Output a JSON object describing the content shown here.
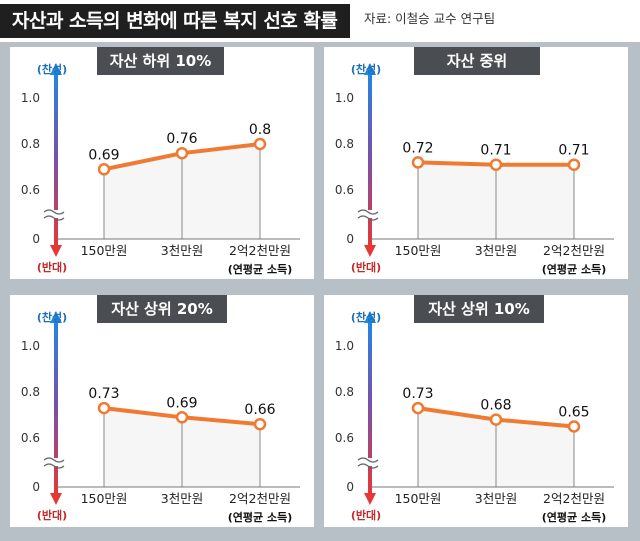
{
  "header": {
    "title": "자산과 소득의 변화에 따른 복지 선호 확률",
    "source": "자료: 이철승 교수 연구팀"
  },
  "axis": {
    "top_label": "(찬성)",
    "bottom_label": "(반대)",
    "unit_note": "(연평균 소득)",
    "ticks": [
      "0",
      "0.6",
      "0.8",
      "1.0"
    ]
  },
  "colors": {
    "line": "#f07a31",
    "top_arrow": "#1e88e5",
    "bottom_arrow": "#e53935"
  },
  "chart_data": [
    {
      "type": "line",
      "title": "자산 하위 10%",
      "categories": [
        "150만원",
        "3천만원",
        "2억2천만원"
      ],
      "values": [
        0.69,
        0.76,
        0.8
      ],
      "value_labels": [
        "0.69",
        "0.76",
        "0.8"
      ],
      "y_tick_labels": [
        "0",
        "0.6",
        "0.8",
        "1.0"
      ],
      "axis_break": "between 0 and 0.6"
    },
    {
      "type": "line",
      "title": "자산 중위",
      "categories": [
        "150만원",
        "3천만원",
        "2억2천만원"
      ],
      "values": [
        0.72,
        0.71,
        0.71
      ],
      "value_labels": [
        "0.72",
        "0.71",
        "0.71"
      ],
      "y_tick_labels": [
        "0",
        "0.6",
        "0.8",
        "1.0"
      ],
      "axis_break": "between 0 and 0.6"
    },
    {
      "type": "line",
      "title": "자산 상위 20%",
      "categories": [
        "150만원",
        "3천만원",
        "2억2천만원"
      ],
      "values": [
        0.73,
        0.69,
        0.66
      ],
      "value_labels": [
        "0.73",
        "0.69",
        "0.66"
      ],
      "y_tick_labels": [
        "0",
        "0.6",
        "0.8",
        "1.0"
      ],
      "axis_break": "between 0 and 0.6"
    },
    {
      "type": "line",
      "title": "자산 상위 10%",
      "categories": [
        "150만원",
        "3천만원",
        "2억2천만원"
      ],
      "values": [
        0.73,
        0.68,
        0.65
      ],
      "value_labels": [
        "0.73",
        "0.68",
        "0.65"
      ],
      "y_tick_labels": [
        "0",
        "0.6",
        "0.8",
        "1.0"
      ],
      "axis_break": "between 0 and 0.6"
    }
  ]
}
